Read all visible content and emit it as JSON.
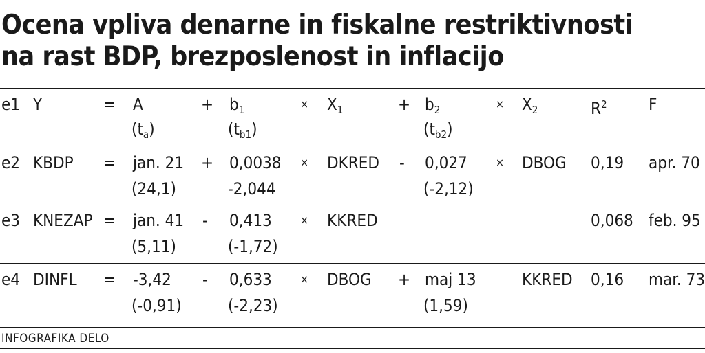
{
  "title": {
    "line1": "Ocena vpliva denarne in fiskalne restriktivnosti",
    "line2": "na rast BDP, brezposlenost in inflacijo"
  },
  "header": {
    "id": "e1",
    "y": "Y",
    "eq": "=",
    "a": "A",
    "a_t": "t",
    "a_t_sub": "a",
    "op1": "+",
    "b1": "b",
    "b1_sub": "1",
    "b1_t": "t",
    "b1_t_sub": "b1",
    "x_mark1": "×",
    "x1": "X",
    "x1_sub": "1",
    "op2": "+",
    "b2": "b",
    "b2_sub": "2",
    "b2_t": "t",
    "b2_t_sub": "b2",
    "x_mark2": "×",
    "x2": "X",
    "x2_sub": "2",
    "r": "R",
    "r_sup": "2",
    "f": "F"
  },
  "rows": [
    {
      "id": "e2",
      "y": "KBDP",
      "eq": "=",
      "a": "jan. 21",
      "a_t": "(24,1)",
      "op1": "+",
      "b1": "0,0038",
      "b1_t": "-2,044",
      "x_mark1": "×",
      "x1": "DKRED",
      "op2": "-",
      "b2": "0,027",
      "b2_t": "(-2,12)",
      "x_mark2": "×",
      "x2": "DBOG",
      "r2": "0,19",
      "f": "apr. 70"
    },
    {
      "id": "e3",
      "y": "KNEZAP",
      "eq": "=",
      "a": "jan. 41",
      "a_t": "(5,11)",
      "op1": "-",
      "b1": "0,413",
      "b1_t": "(-1,72)",
      "x_mark1": "×",
      "x1": "KKRED",
      "op2": "",
      "b2": "",
      "b2_t": "",
      "x_mark2": "",
      "x2": "",
      "r2": "0,068",
      "f": "feb. 95"
    },
    {
      "id": "e4",
      "y": "DINFL",
      "eq": "=",
      "a": "-3,42",
      "a_t": "(-0,91)",
      "op1": "-",
      "b1": "0,633",
      "b1_t": "(-2,23)",
      "x_mark1": "×",
      "x1": "DBOG",
      "op2": "+",
      "b2": "maj 13",
      "b2_t": "(1,59)",
      "x_mark2": "",
      "x2": "KKRED",
      "r2": "0,16",
      "f": "mar. 73"
    }
  ],
  "footer": "INFOGRAFIKA DELO"
}
